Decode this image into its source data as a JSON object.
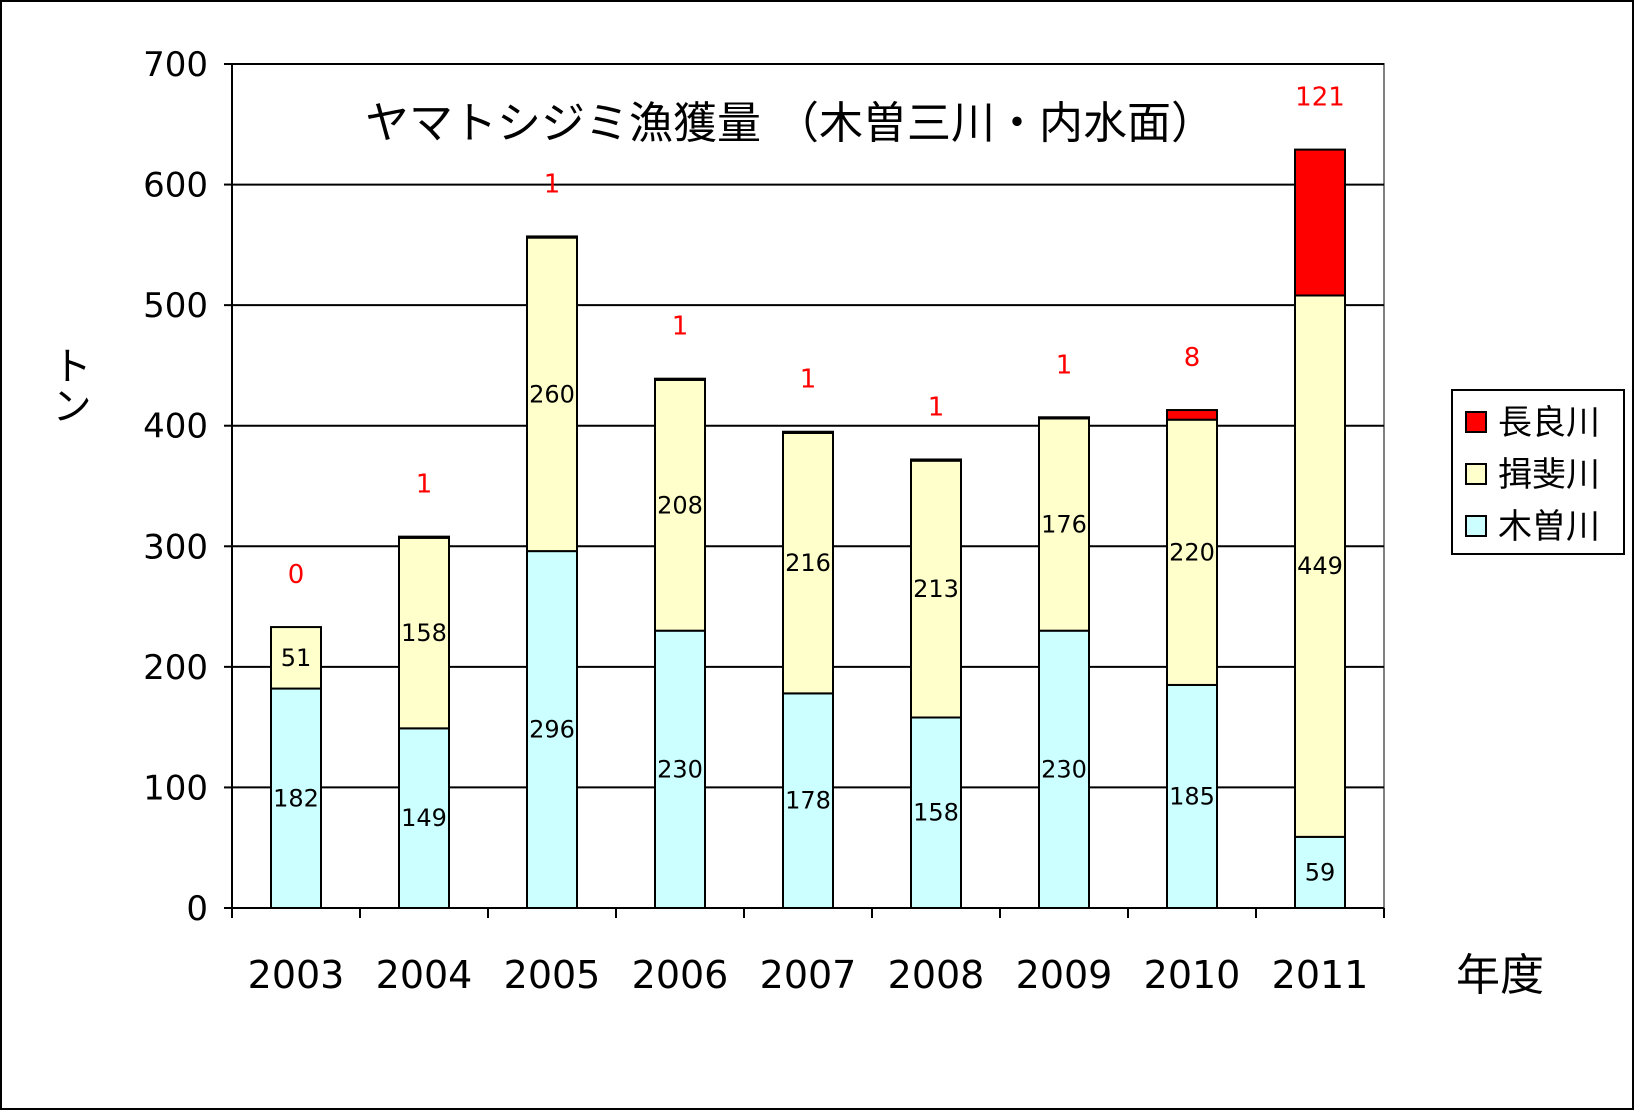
{
  "chart_data": {
    "type": "bar",
    "stacked": true,
    "title": "ヤマトシジミ漁獲量 （木曽三川・内水面）",
    "xlabel": "年度",
    "ylabel": "トン",
    "ylim": [
      0,
      700
    ],
    "yticks": [
      0,
      100,
      200,
      300,
      400,
      500,
      600,
      700
    ],
    "grid": true,
    "legend_position": "right",
    "categories": [
      "2003",
      "2004",
      "2005",
      "2006",
      "2007",
      "2008",
      "2009",
      "2010",
      "2011"
    ],
    "series": [
      {
        "name": "木曽川",
        "color": "#ccffff",
        "values": [
          182,
          149,
          296,
          230,
          178,
          158,
          230,
          185,
          59
        ]
      },
      {
        "name": "揖斐川",
        "color": "#ffffcc",
        "values": [
          51,
          158,
          260,
          208,
          216,
          213,
          176,
          220,
          449
        ]
      },
      {
        "name": "長良川",
        "color": "#ff0000",
        "values": [
          0,
          1,
          1,
          1,
          1,
          1,
          1,
          8,
          121
        ]
      }
    ],
    "legend": [
      "長良川",
      "揖斐川",
      "木曽川"
    ],
    "label_colors": {
      "top": "#ff0000",
      "inner": "#000000"
    }
  }
}
